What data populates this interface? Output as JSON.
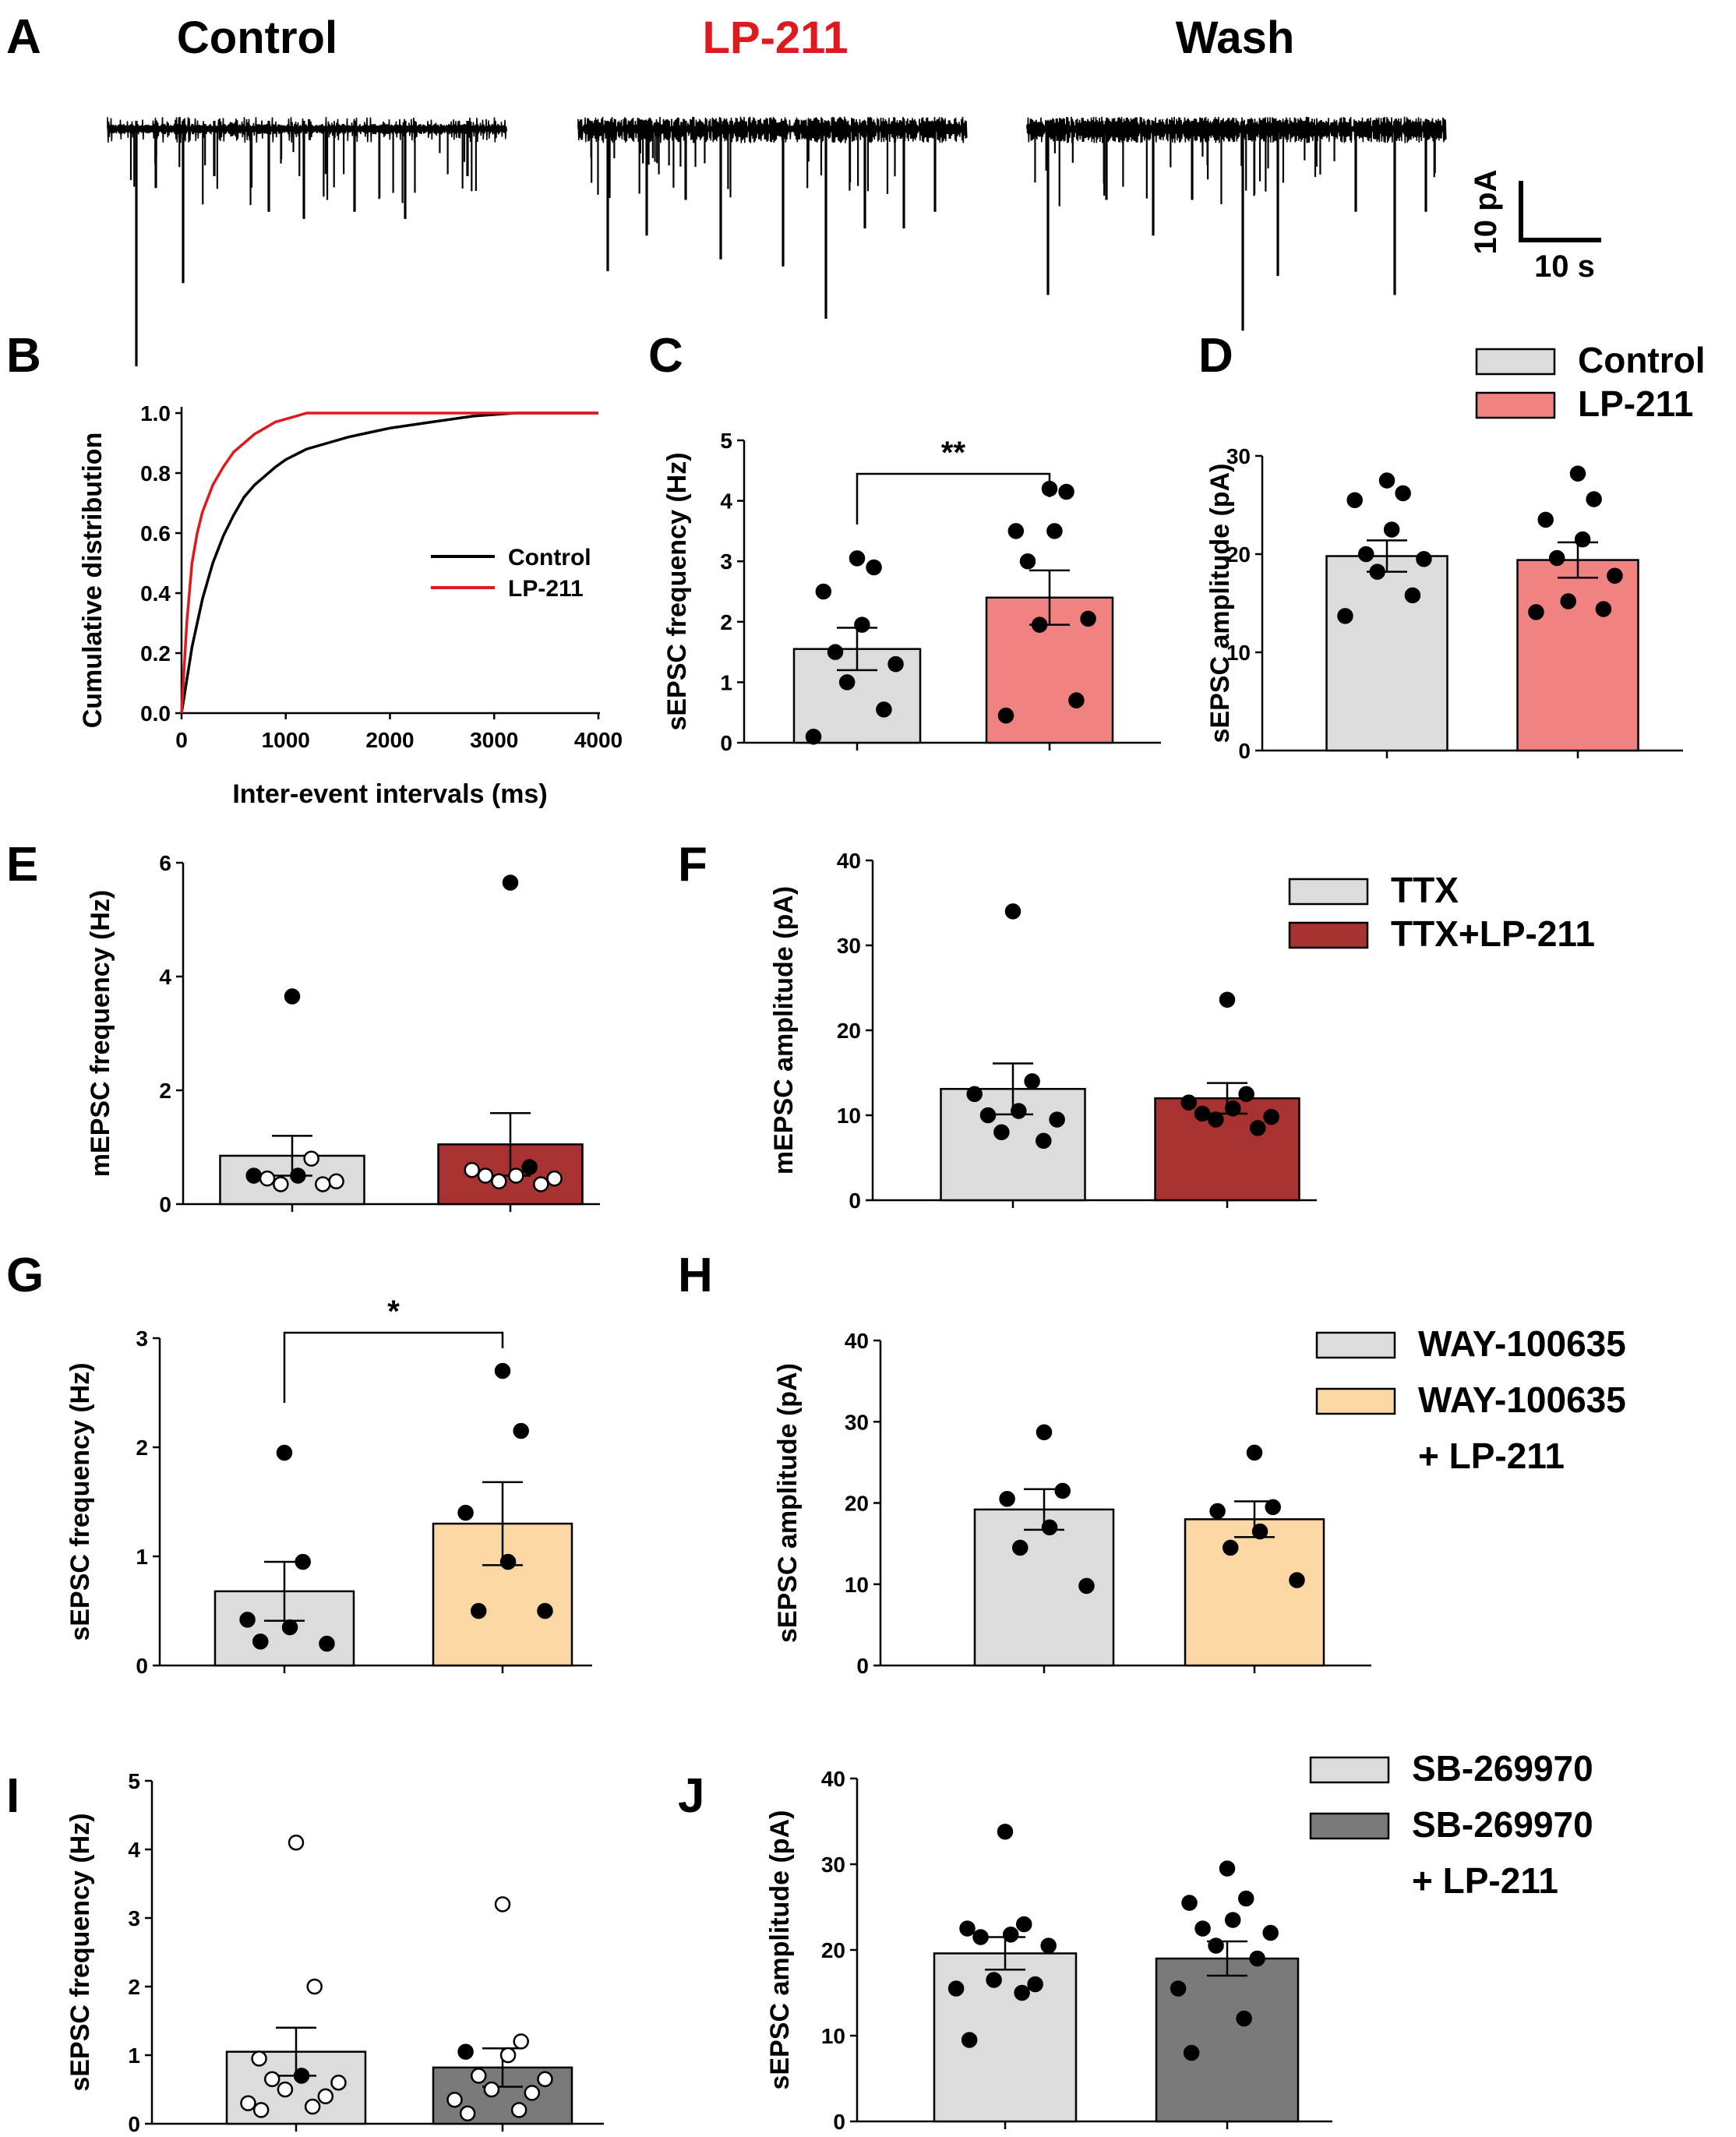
{
  "chart_data": [
    {
      "panel": "A",
      "type": "trace",
      "conditions": [
        {
          "label": "Control",
          "color": "#000000"
        },
        {
          "label": "LP-211",
          "color": "#e0191f"
        },
        {
          "label": "Wash",
          "color": "#000000"
        }
      ],
      "scale_y": "10 pA",
      "scale_x": "10 s"
    },
    {
      "panel": "B",
      "type": "line",
      "xlabel": "Inter-event intervals (ms)",
      "ylabel": "Cumulative distribution",
      "xlim": [
        0,
        4000
      ],
      "ylim": [
        0,
        1.0
      ],
      "xticks": [
        "0",
        "1000",
        "2000",
        "3000",
        "4000"
      ],
      "yticks": [
        "0.0",
        "0.2",
        "0.4",
        "0.6",
        "0.8",
        "1.0"
      ],
      "series": [
        {
          "name": "Control",
          "color": "#000000",
          "x": [
            0,
            100,
            200,
            300,
            400,
            500,
            600,
            700,
            800,
            900,
            1000,
            1200,
            1400,
            1600,
            1800,
            2000,
            2200,
            2400,
            2600,
            2800,
            3000,
            3200,
            3400,
            3600,
            3800,
            4000
          ],
          "y": [
            0,
            0.22,
            0.38,
            0.5,
            0.59,
            0.66,
            0.72,
            0.76,
            0.79,
            0.82,
            0.845,
            0.88,
            0.9,
            0.92,
            0.935,
            0.95,
            0.96,
            0.97,
            0.98,
            0.99,
            0.995,
            1.0,
            1.0,
            1.0,
            1.0,
            1.0
          ]
        },
        {
          "name": "LP-211",
          "color": "#e0191f",
          "x": [
            0,
            50,
            100,
            150,
            200,
            300,
            400,
            500,
            600,
            700,
            800,
            900,
            1000,
            1100,
            1200,
            1300,
            1500,
            2000,
            3000,
            4000
          ],
          "y": [
            0,
            0.3,
            0.5,
            0.6,
            0.67,
            0.76,
            0.82,
            0.87,
            0.9,
            0.93,
            0.95,
            0.97,
            0.98,
            0.99,
            1.0,
            1.0,
            1.0,
            1.0,
            1.0,
            1.0
          ]
        }
      ]
    },
    {
      "panel": "C",
      "type": "bar",
      "ylabel": "sEPSC frequency (Hz)",
      "ylim": [
        0,
        5
      ],
      "yticks": [
        "0",
        "1",
        "2",
        "3",
        "4",
        "5"
      ],
      "significance": "**",
      "bars": [
        {
          "name": "Control",
          "color": "#dcdcdc",
          "mean": 1.55,
          "sem": 0.35,
          "points": [
            3.05,
            2.9,
            2.5,
            1.95,
            1.5,
            1.3,
            1.0,
            0.55,
            0.1
          ],
          "open": []
        },
        {
          "name": "LP-211",
          "color": "#f08282",
          "mean": 2.4,
          "sem": 0.45,
          "points": [
            4.2,
            4.15,
            3.5,
            3.5,
            3.0,
            2.05,
            1.95,
            0.7,
            0.45
          ],
          "open": []
        }
      ]
    },
    {
      "panel": "D",
      "type": "bar",
      "ylabel": "sEPSC amplitude (pA)",
      "ylim": [
        0,
        30
      ],
      "yticks": [
        "0",
        "10",
        "20",
        "30"
      ],
      "legend": [
        "Control",
        "LP-211"
      ],
      "bars": [
        {
          "name": "Control",
          "color": "#dcdcdc",
          "mean": 19.8,
          "sem": 1.6,
          "points": [
            27.5,
            26.2,
            25.5,
            22.5,
            20.0,
            19.5,
            18.2,
            15.8,
            13.7
          ],
          "open": []
        },
        {
          "name": "LP-211",
          "color": "#f08282",
          "mean": 19.4,
          "sem": 1.8,
          "points": [
            28.2,
            25.6,
            23.5,
            21.5,
            19.6,
            17.8,
            15.2,
            14.4,
            14.1
          ],
          "open": []
        }
      ]
    },
    {
      "panel": "E",
      "type": "bar",
      "ylabel": "mEPSC frequency (Hz)",
      "ylim": [
        0,
        6
      ],
      "yticks": [
        "0",
        "2",
        "4",
        "6"
      ],
      "bars": [
        {
          "name": "TTX",
          "color": "#dcdcdc",
          "mean": 0.85,
          "sem": 0.35,
          "points": [
            3.65,
            0.8,
            0.5,
            0.5,
            0.45,
            0.4,
            0.35,
            0.35
          ],
          "open": [
            false,
            true,
            false,
            false,
            true,
            true,
            true,
            true
          ]
        },
        {
          "name": "TTX+LP-211",
          "color": "#a83232",
          "mean": 1.05,
          "sem": 0.55,
          "points": [
            5.65,
            0.65,
            0.6,
            0.5,
            0.5,
            0.45,
            0.4,
            0.35
          ],
          "open": [
            false,
            false,
            true,
            true,
            true,
            true,
            true,
            true
          ]
        }
      ]
    },
    {
      "panel": "F",
      "type": "bar",
      "ylabel": "mEPSC amplitude (pA)",
      "ylim": [
        0,
        40
      ],
      "yticks": [
        "0",
        "10",
        "20",
        "30",
        "40"
      ],
      "legend": [
        "TTX",
        "TTX+LP-211"
      ],
      "bars": [
        {
          "name": "TTX",
          "color": "#dcdcdc",
          "mean": 13.1,
          "sem": 3.0,
          "points": [
            34.0,
            14.0,
            12.5,
            10.5,
            10.0,
            9.5,
            8.0,
            7.0
          ],
          "open": []
        },
        {
          "name": "TTX+LP-211",
          "color": "#a83232",
          "mean": 12.0,
          "sem": 1.8,
          "points": [
            23.6,
            12.5,
            11.5,
            10.8,
            10.2,
            9.8,
            9.5,
            8.5
          ],
          "open": []
        }
      ]
    },
    {
      "panel": "G",
      "type": "bar",
      "ylabel": "sEPSC frequency (Hz)",
      "ylim": [
        0,
        3
      ],
      "yticks": [
        "0",
        "1",
        "2",
        "3"
      ],
      "significance": "*",
      "bars": [
        {
          "name": "WAY-100635",
          "color": "#dcdcdc",
          "mean": 0.68,
          "sem": 0.27,
          "points": [
            1.95,
            0.95,
            0.42,
            0.35,
            0.22,
            0.2
          ],
          "open": []
        },
        {
          "name": "WAY-100635 + LP-211",
          "color": "#fbd7a5",
          "mean": 1.3,
          "sem": 0.38,
          "points": [
            2.7,
            2.15,
            1.4,
            0.95,
            0.5,
            0.5
          ],
          "open": []
        }
      ]
    },
    {
      "panel": "H",
      "type": "bar",
      "ylabel": "sEPSC amplitude (pA)",
      "ylim": [
        0,
        40
      ],
      "yticks": [
        "0",
        "10",
        "20",
        "30",
        "40"
      ],
      "legend": [
        "WAY-100635",
        "WAY-100635",
        "+ LP-211"
      ],
      "bars": [
        {
          "name": "WAY-100635",
          "color": "#dcdcdc",
          "mean": 19.2,
          "sem": 2.5,
          "points": [
            28.7,
            21.5,
            20.5,
            17.0,
            14.5,
            9.8
          ],
          "open": []
        },
        {
          "name": "WAY-100635 + LP-211",
          "color": "#fbd7a5",
          "mean": 18.0,
          "sem": 2.2,
          "points": [
            26.2,
            19.5,
            19.0,
            16.5,
            14.5,
            10.5
          ],
          "open": []
        }
      ]
    },
    {
      "panel": "I",
      "type": "bar",
      "ylabel": "sEPSC frequency (Hz)",
      "ylim": [
        0,
        5
      ],
      "yticks": [
        "0",
        "1",
        "2",
        "3",
        "4",
        "5"
      ],
      "bars": [
        {
          "name": "SB-269970",
          "color": "#dcdcdc",
          "mean": 1.05,
          "sem": 0.35,
          "points": [
            4.1,
            2.0,
            0.95,
            0.7,
            0.65,
            0.6,
            0.5,
            0.4,
            0.3,
            0.25,
            0.2
          ],
          "open": [
            true,
            true,
            true,
            false,
            true,
            true,
            true,
            true,
            true,
            true,
            true
          ]
        },
        {
          "name": "SB-269970 + LP-211",
          "color": "#7a7a7a",
          "mean": 0.82,
          "sem": 0.28,
          "points": [
            3.2,
            1.2,
            1.05,
            1.0,
            0.7,
            0.65,
            0.5,
            0.45,
            0.35,
            0.2,
            0.15
          ],
          "open": [
            true,
            true,
            false,
            true,
            true,
            true,
            true,
            true,
            true,
            true,
            true
          ]
        }
      ]
    },
    {
      "panel": "J",
      "type": "bar",
      "ylabel": "sEPSC amplitude (pA)",
      "ylim": [
        0,
        40
      ],
      "yticks": [
        "0",
        "10",
        "20",
        "30",
        "40"
      ],
      "legend": [
        "SB-269970",
        "SB-269970",
        "+ LP-211"
      ],
      "bars": [
        {
          "name": "SB-269970",
          "color": "#dcdcdc",
          "mean": 19.6,
          "sem": 1.9,
          "points": [
            33.8,
            23.0,
            22.5,
            21.8,
            21.5,
            20.5,
            16.5,
            16.0,
            15.5,
            15.0,
            9.5
          ],
          "open": []
        },
        {
          "name": "SB-269970 + LP-211",
          "color": "#7a7a7a",
          "mean": 19.0,
          "sem": 2.0,
          "points": [
            29.5,
            26.0,
            25.5,
            23.5,
            22.5,
            22.0,
            20.5,
            19.0,
            15.5,
            12.0,
            8.0
          ],
          "open": []
        }
      ]
    }
  ]
}
